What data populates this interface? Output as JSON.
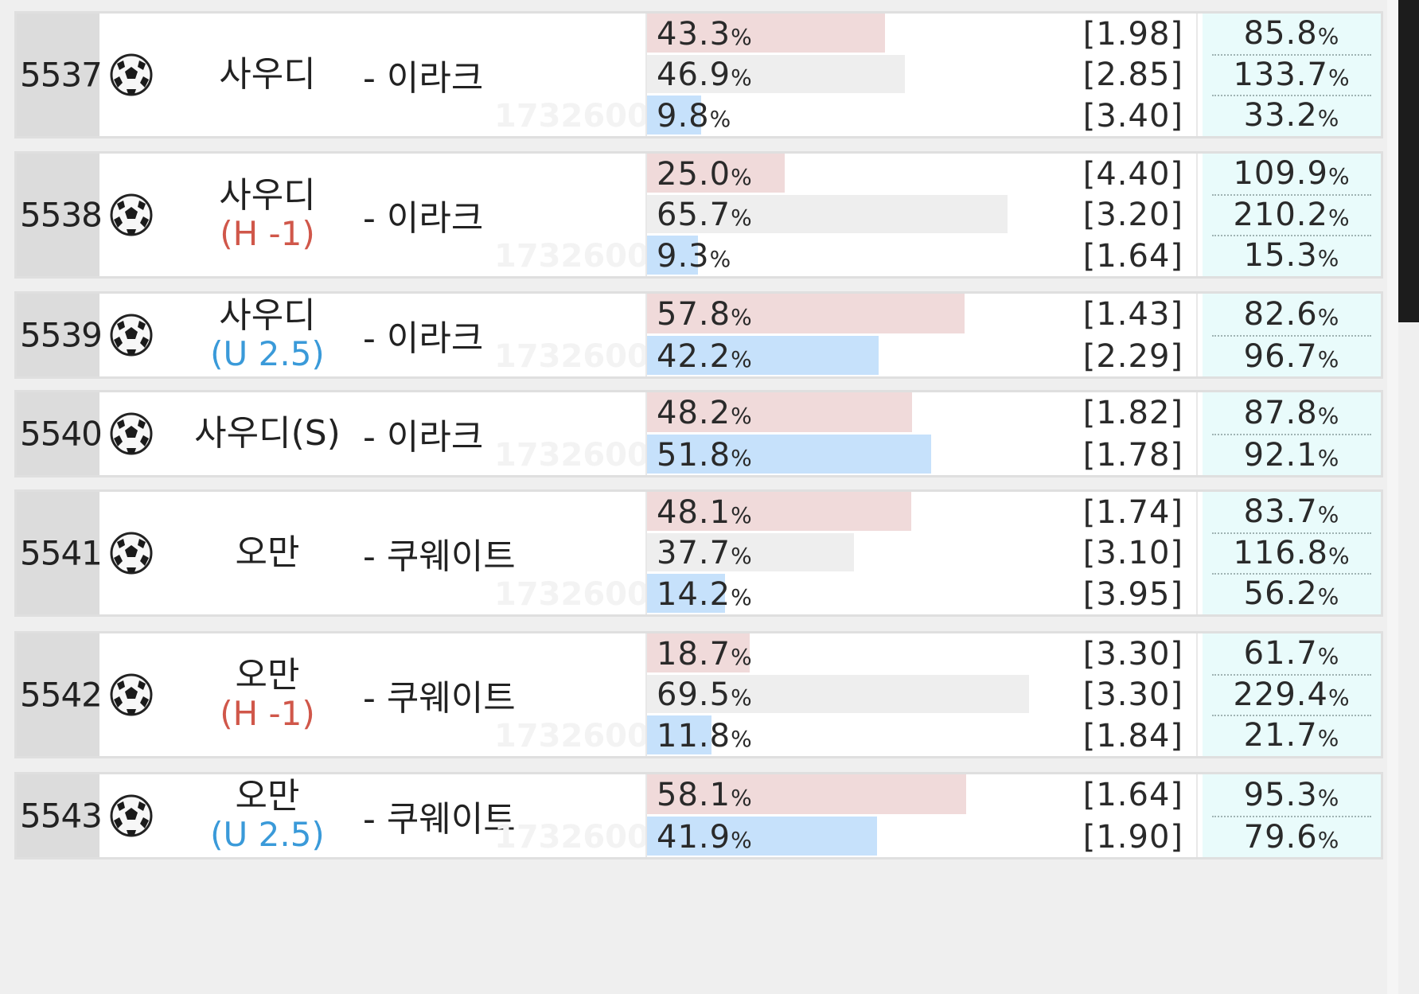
{
  "colors": {
    "win_bar": "#f0dada",
    "draw_bar": "#eeeeee",
    "lose_bar": "#c6e1fb",
    "handicap_text": "#d0574a",
    "underover_text": "#3a9ad9",
    "return_bg": "#e9fbfb"
  },
  "icons": {
    "sport": "soccer-ball-icon"
  },
  "watermark": "173260000",
  "games": [
    {
      "number": "5537",
      "home": "사우디",
      "modifier": "",
      "modifier_type": "",
      "away": "- 이라크",
      "outcomes": [
        {
          "kind": "win",
          "pct_value": "43.3",
          "pct_unit": "%",
          "share": 0.433,
          "odds": "[1.98]",
          "ret_value": "85.8",
          "ret_unit": "%"
        },
        {
          "kind": "draw",
          "pct_value": "46.9",
          "pct_unit": "%",
          "share": 0.469,
          "odds": "[2.85]",
          "ret_value": "133.7",
          "ret_unit": "%"
        },
        {
          "kind": "lose",
          "pct_value": "9.8",
          "pct_unit": "%",
          "share": 0.098,
          "odds": "[3.40]",
          "ret_value": "33.2",
          "ret_unit": "%"
        }
      ]
    },
    {
      "number": "5538",
      "home": "사우디",
      "modifier": "(H -1)",
      "modifier_type": "h",
      "away": "- 이라크",
      "outcomes": [
        {
          "kind": "win",
          "pct_value": "25.0",
          "pct_unit": "%",
          "share": 0.25,
          "odds": "[4.40]",
          "ret_value": "109.9",
          "ret_unit": "%"
        },
        {
          "kind": "draw",
          "pct_value": "65.7",
          "pct_unit": "%",
          "share": 0.657,
          "odds": "[3.20]",
          "ret_value": "210.2",
          "ret_unit": "%"
        },
        {
          "kind": "lose",
          "pct_value": "9.3",
          "pct_unit": "%",
          "share": 0.093,
          "odds": "[1.64]",
          "ret_value": "15.3",
          "ret_unit": "%"
        }
      ]
    },
    {
      "number": "5539",
      "home": "사우디",
      "modifier": "(U 2.5)",
      "modifier_type": "u",
      "away": "- 이라크",
      "outcomes": [
        {
          "kind": "win",
          "pct_value": "57.8",
          "pct_unit": "%",
          "share": 0.578,
          "odds": "[1.43]",
          "ret_value": "82.6",
          "ret_unit": "%"
        },
        {
          "kind": "lose",
          "pct_value": "42.2",
          "pct_unit": "%",
          "share": 0.422,
          "odds": "[2.29]",
          "ret_value": "96.7",
          "ret_unit": "%"
        }
      ]
    },
    {
      "number": "5540",
      "home": "사우디(S)",
      "modifier": "",
      "modifier_type": "",
      "away": "- 이라크",
      "outcomes": [
        {
          "kind": "win",
          "pct_value": "48.2",
          "pct_unit": "%",
          "share": 0.482,
          "odds": "[1.82]",
          "ret_value": "87.8",
          "ret_unit": "%"
        },
        {
          "kind": "lose",
          "pct_value": "51.8",
          "pct_unit": "%",
          "share": 0.518,
          "odds": "[1.78]",
          "ret_value": "92.1",
          "ret_unit": "%"
        }
      ]
    },
    {
      "number": "5541",
      "home": "오만",
      "modifier": "",
      "modifier_type": "",
      "away": "- 쿠웨이트",
      "outcomes": [
        {
          "kind": "win",
          "pct_value": "48.1",
          "pct_unit": "%",
          "share": 0.481,
          "odds": "[1.74]",
          "ret_value": "83.7",
          "ret_unit": "%"
        },
        {
          "kind": "draw",
          "pct_value": "37.7",
          "pct_unit": "%",
          "share": 0.377,
          "odds": "[3.10]",
          "ret_value": "116.8",
          "ret_unit": "%"
        },
        {
          "kind": "lose",
          "pct_value": "14.2",
          "pct_unit": "%",
          "share": 0.142,
          "odds": "[3.95]",
          "ret_value": "56.2",
          "ret_unit": "%"
        }
      ]
    },
    {
      "number": "5542",
      "home": "오만",
      "modifier": "(H -1)",
      "modifier_type": "h",
      "away": "- 쿠웨이트",
      "outcomes": [
        {
          "kind": "win",
          "pct_value": "18.7",
          "pct_unit": "%",
          "share": 0.187,
          "odds": "[3.30]",
          "ret_value": "61.7",
          "ret_unit": "%"
        },
        {
          "kind": "draw",
          "pct_value": "69.5",
          "pct_unit": "%",
          "share": 0.695,
          "odds": "[3.30]",
          "ret_value": "229.4",
          "ret_unit": "%"
        },
        {
          "kind": "lose",
          "pct_value": "11.8",
          "pct_unit": "%",
          "share": 0.118,
          "odds": "[1.84]",
          "ret_value": "21.7",
          "ret_unit": "%"
        }
      ]
    },
    {
      "number": "5543",
      "home": "오만",
      "modifier": "(U 2.5)",
      "modifier_type": "u",
      "away": "- 쿠웨이트",
      "outcomes": [
        {
          "kind": "win",
          "pct_value": "58.1",
          "pct_unit": "%",
          "share": 0.581,
          "odds": "[1.64]",
          "ret_value": "95.3",
          "ret_unit": "%"
        },
        {
          "kind": "lose",
          "pct_value": "41.9",
          "pct_unit": "%",
          "share": 0.419,
          "odds": "[1.90]",
          "ret_value": "79.6",
          "ret_unit": "%"
        }
      ]
    }
  ]
}
